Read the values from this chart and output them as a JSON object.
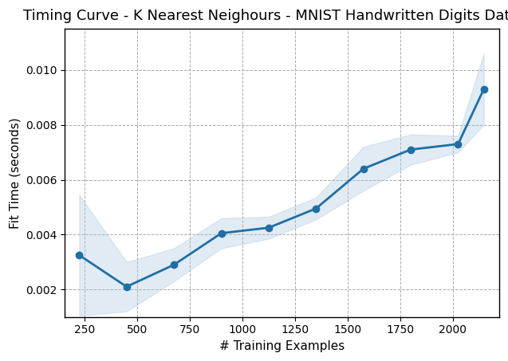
{
  "title": "Timing Curve - K Nearest Neighours - MNIST Handwritten Digits Dataset",
  "xlabel": "# Training Examples",
  "ylabel": "Fit Time (seconds)",
  "x": [
    225,
    450,
    675,
    900,
    1125,
    1350,
    1575,
    1800,
    2025,
    2147
  ],
  "y_mean": [
    0.00325,
    0.0021,
    0.0029,
    0.00405,
    0.00425,
    0.00495,
    0.0064,
    0.0071,
    0.0073,
    0.0093
  ],
  "y_std": [
    0.0022,
    0.0009,
    0.0006,
    0.00055,
    0.0004,
    0.0004,
    0.0008,
    0.00055,
    0.0003,
    0.0013
  ],
  "line_color": "#1f6fa3",
  "fill_color": "#aac8e0",
  "fill_alpha": 0.35,
  "line_width": 2.0,
  "marker": "o",
  "marker_size": 6,
  "title_fontsize": 13,
  "label_fontsize": 11,
  "tick_fontsize": 10,
  "xlim": [
    155,
    2220
  ],
  "ylim": [
    0.001,
    0.0115
  ],
  "xticks": [
    250,
    500,
    750,
    1000,
    1250,
    1500,
    1750,
    2000
  ],
  "yticks": [
    0.002,
    0.004,
    0.006,
    0.008,
    0.01
  ],
  "grid_color": "#aaaaaa",
  "grid_linestyle": "--",
  "bg_color": "#ffffff"
}
